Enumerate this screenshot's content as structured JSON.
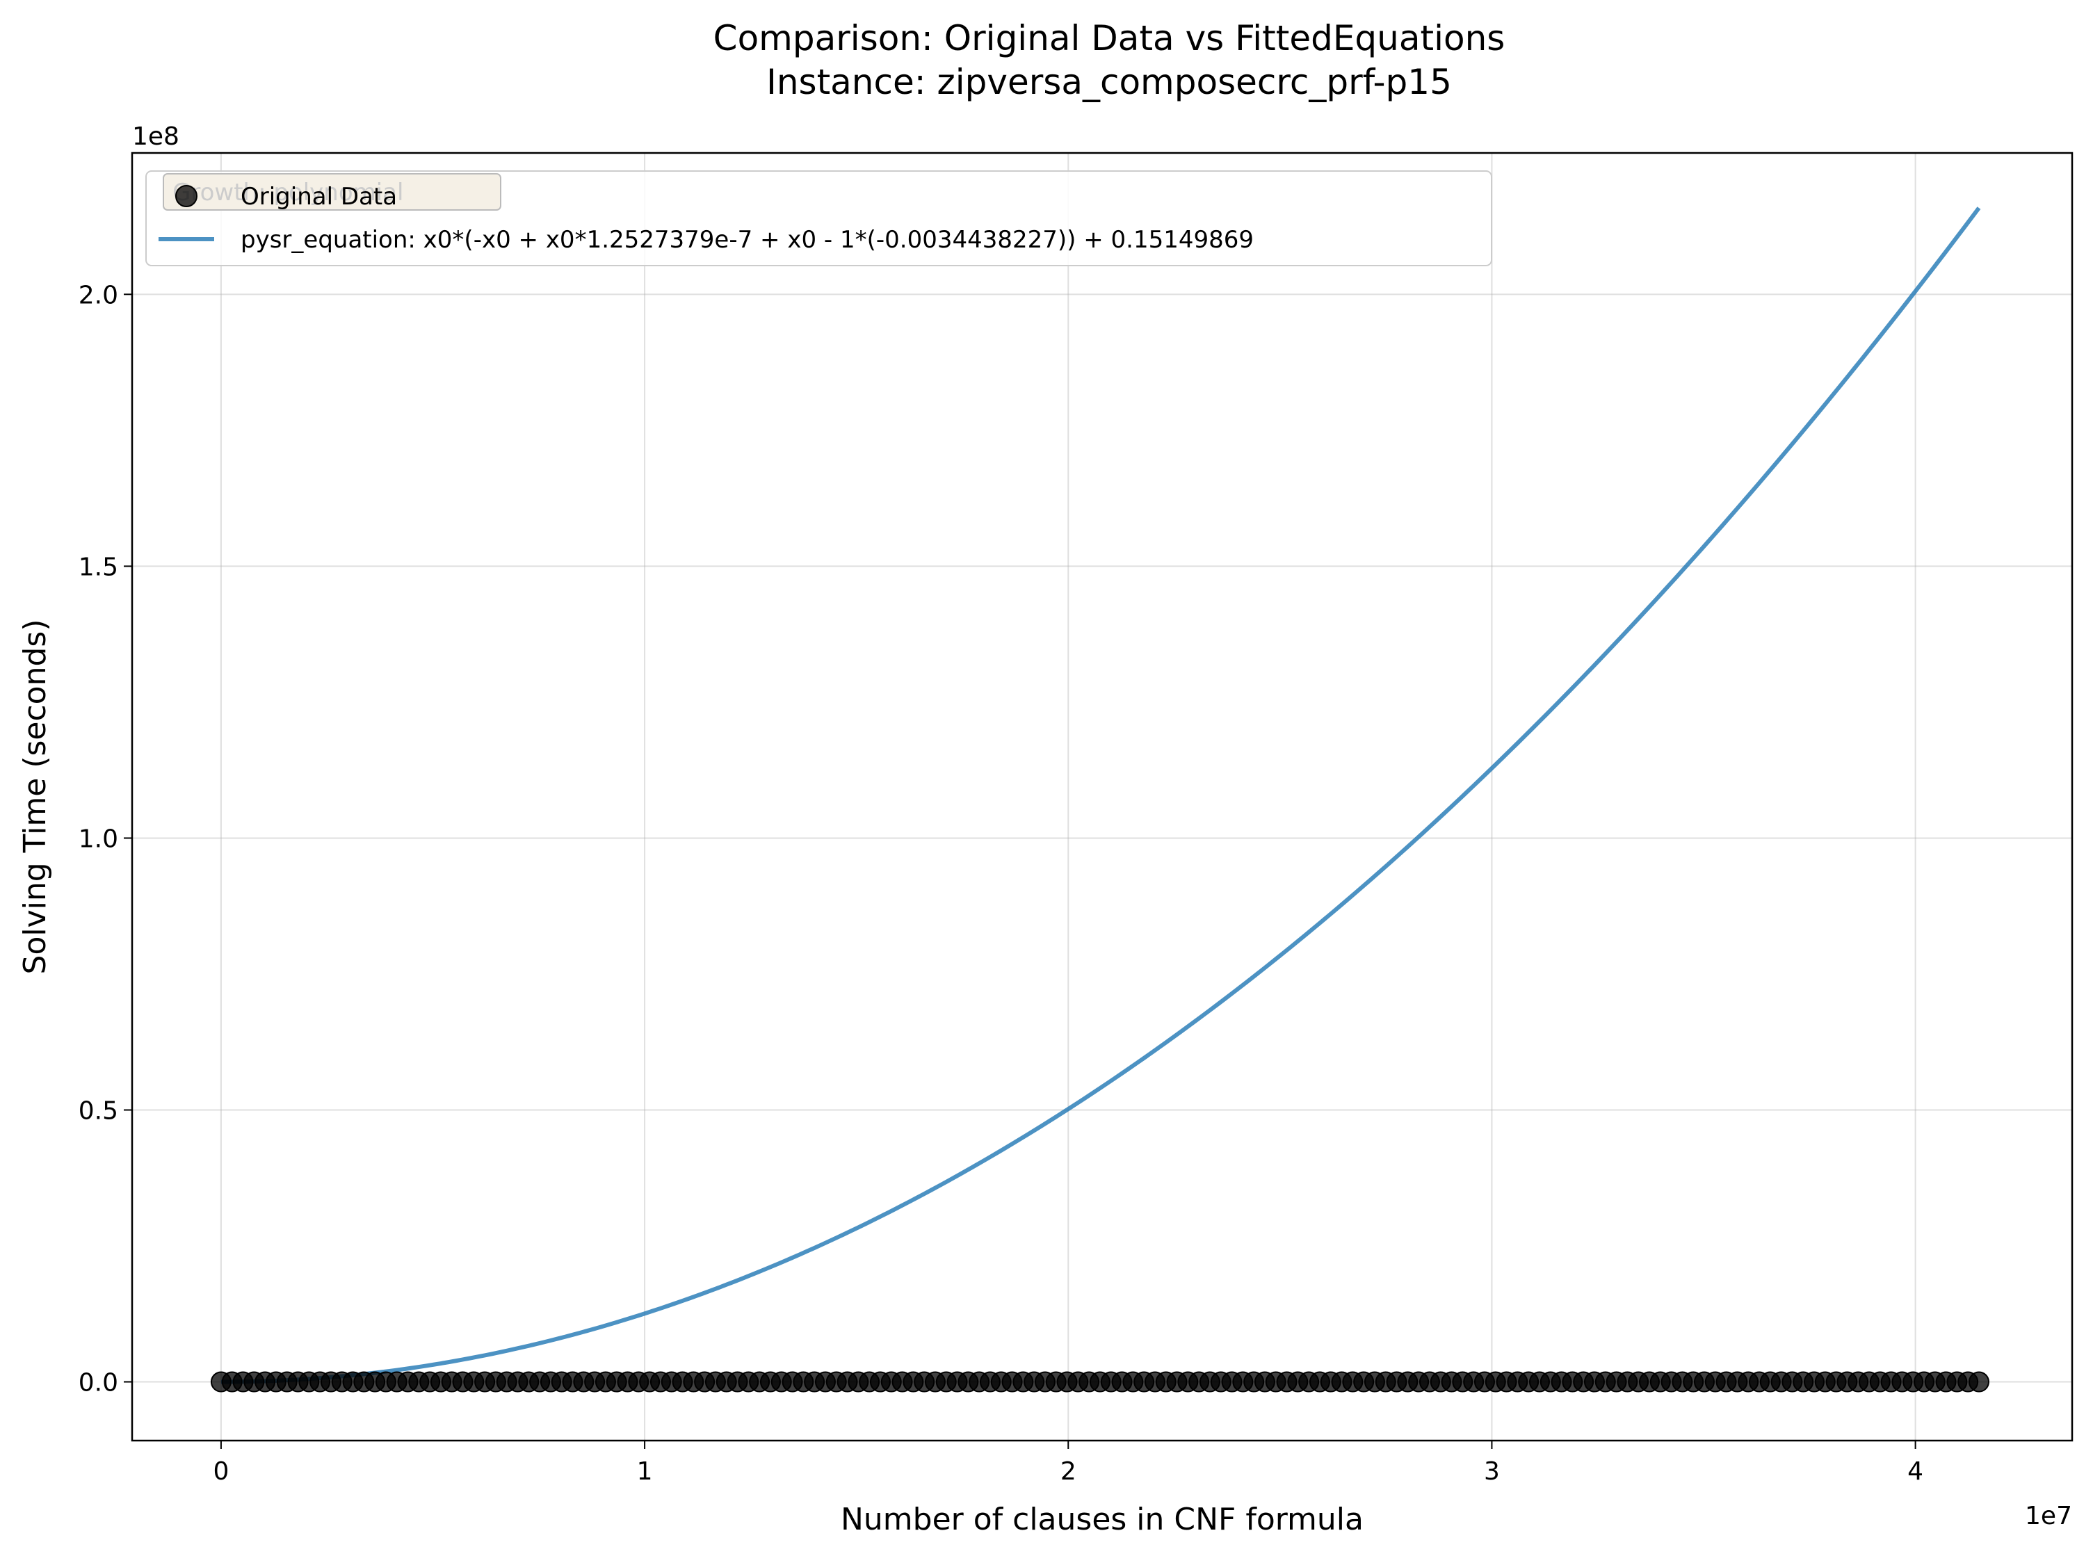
{
  "chart_data": {
    "type": "line",
    "title_line1": "Comparison: Original Data vs FittedEquations",
    "title_line2": "Instance: zipversa_composecrc_prf-p15",
    "xlabel": "Number of clauses in CNF formula",
    "ylabel": "Solving Time (seconds)",
    "x_offset_label": "1e7",
    "y_offset_label": "1e8",
    "xlim": [
      -2100000,
      43700000
    ],
    "ylim": [
      -10800000,
      226000000
    ],
    "x_ticks": [
      {
        "value": 0,
        "label": "0"
      },
      {
        "value": 10000000,
        "label": "1"
      },
      {
        "value": 20000000,
        "label": "2"
      },
      {
        "value": 30000000,
        "label": "3"
      },
      {
        "value": 40000000,
        "label": "4"
      }
    ],
    "y_ticks": [
      {
        "value": 0,
        "label": "0.0"
      },
      {
        "value": 50000000,
        "label": "0.5"
      },
      {
        "value": 100000000,
        "label": "1.0"
      },
      {
        "value": 150000000,
        "label": "1.5"
      },
      {
        "value": 200000000,
        "label": "2.0"
      }
    ],
    "grid": true,
    "legend": {
      "placement": "top-left",
      "entries": [
        {
          "label": "Original Data",
          "kind": "marker",
          "color": "#000000"
        },
        {
          "label": "pysr_equation: x0*(-x0 + x0*1.2527379e-7 + x0 - 1*(-0.0034438227)) + 0.15149869",
          "kind": "line",
          "color": "#1f77b4"
        }
      ],
      "ghost_text": "Growth: polynomial"
    },
    "series": [
      {
        "name": "Original Data",
        "kind": "scatter",
        "color": "#000000",
        "x_start": 0,
        "x_end": 41500000,
        "y": 0
      },
      {
        "name": "pysr_equation: x0*(-x0 + x0*1.2527379e-7 + x0 - 1*(-0.0034438227)) + 0.15149869",
        "kind": "line",
        "color": "#1f77b4",
        "equation": {
          "a": 1.2527379e-07,
          "b": 0.0034438227,
          "c": 0.15149869
        },
        "x_start": 0,
        "x_end": 41500000
      }
    ]
  }
}
